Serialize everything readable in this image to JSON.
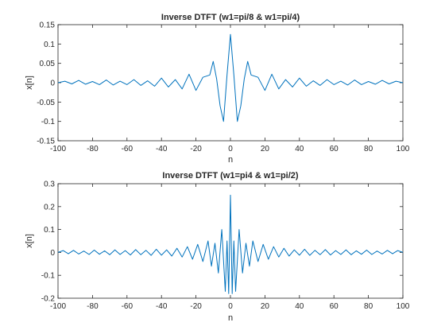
{
  "chart_data": [
    {
      "type": "line",
      "title": "Inverse DTFT (w1=pi/8 & w1=pi/4)",
      "xlabel": "n",
      "ylabel": "x[n]",
      "xlim": [
        -100,
        100
      ],
      "ylim": [
        -0.15,
        0.15
      ],
      "xticks": [
        -100,
        -80,
        -60,
        -40,
        -20,
        0,
        20,
        40,
        60,
        80,
        100
      ],
      "yticks": [
        -0.15,
        -0.1,
        -0.05,
        0,
        0.05,
        0.1,
        0.15
      ],
      "xtick_labels": [
        "-100",
        "-80",
        "-60",
        "-40",
        "-20",
        "0",
        "20",
        "40",
        "60",
        "80",
        "100"
      ],
      "ytick_labels": [
        "-0.15",
        "-0.1",
        "-0.05",
        "0",
        "0.05",
        "0.1",
        "0.15"
      ],
      "grid": false,
      "series_color": "#0072BD",
      "x": [
        -100,
        -96,
        -92,
        -88,
        -84,
        -80,
        -76,
        -72,
        -68,
        -64,
        -60,
        -56,
        -52,
        -48,
        -44,
        -40,
        -36,
        -32,
        -28,
        -24,
        -20,
        -16,
        -12,
        -10,
        -8,
        -6,
        -4,
        -2,
        0,
        2,
        4,
        6,
        8,
        10,
        12,
        16,
        20,
        24,
        28,
        32,
        36,
        40,
        44,
        48,
        52,
        56,
        60,
        64,
        68,
        72,
        76,
        80,
        84,
        88,
        92,
        96,
        100
      ],
      "y": [
        0,
        0.004,
        -0.003,
        0.006,
        -0.004,
        0.003,
        -0.005,
        0.007,
        -0.006,
        0.004,
        -0.005,
        0.008,
        -0.007,
        0.005,
        -0.009,
        0.012,
        -0.011,
        0.008,
        -0.016,
        0.022,
        -0.02,
        0.014,
        0.02,
        0.055,
        0.01,
        -0.06,
        -0.1,
        0.02,
        0.125,
        0.02,
        -0.1,
        -0.06,
        0.01,
        0.055,
        0.02,
        0.014,
        -0.02,
        0.022,
        -0.016,
        0.008,
        -0.011,
        0.012,
        -0.009,
        0.005,
        -0.007,
        0.008,
        -0.005,
        0.004,
        -0.006,
        0.007,
        -0.005,
        0.003,
        -0.004,
        0.006,
        -0.003,
        0.004,
        0
      ]
    },
    {
      "type": "line",
      "title": "Inverse DTFT (w1=pi4 & w1=pi/2)",
      "xlabel": "n",
      "ylabel": "x[n]",
      "xlim": [
        -100,
        100
      ],
      "ylim": [
        -0.2,
        0.3
      ],
      "xticks": [
        -100,
        -80,
        -60,
        -40,
        -20,
        0,
        20,
        40,
        60,
        80,
        100
      ],
      "yticks": [
        -0.2,
        -0.1,
        0,
        0.1,
        0.2,
        0.3
      ],
      "xtick_labels": [
        "-100",
        "-80",
        "-60",
        "-40",
        "-20",
        "0",
        "20",
        "40",
        "60",
        "80",
        "100"
      ],
      "ytick_labels": [
        "-0.2",
        "-0.1",
        "0",
        "0.1",
        "0.2",
        "0.3"
      ],
      "grid": false,
      "series_color": "#0072BD",
      "x": [
        -100,
        -97,
        -94,
        -91,
        -88,
        -85,
        -82,
        -79,
        -76,
        -73,
        -70,
        -67,
        -64,
        -61,
        -58,
        -55,
        -52,
        -49,
        -46,
        -43,
        -40,
        -37,
        -34,
        -31,
        -28,
        -25,
        -22,
        -19,
        -16,
        -13,
        -11,
        -9,
        -7,
        -5,
        -3,
        -2,
        -1,
        0,
        1,
        2,
        3,
        5,
        7,
        9,
        11,
        13,
        16,
        19,
        22,
        25,
        28,
        31,
        34,
        37,
        40,
        43,
        46,
        49,
        52,
        55,
        58,
        61,
        64,
        67,
        70,
        73,
        76,
        79,
        82,
        85,
        88,
        91,
        94,
        97,
        100
      ],
      "y": [
        0,
        0.008,
        -0.006,
        0.009,
        -0.007,
        0.006,
        -0.009,
        0.01,
        -0.008,
        0.007,
        -0.01,
        0.011,
        -0.009,
        0.008,
        -0.011,
        0.012,
        -0.01,
        0.009,
        -0.013,
        0.014,
        -0.012,
        0.011,
        -0.016,
        0.018,
        -0.02,
        0.025,
        -0.03,
        0.035,
        -0.04,
        0.05,
        -0.06,
        0.04,
        -0.09,
        0.1,
        -0.17,
        0.05,
        -0.18,
        0.25,
        -0.18,
        0.05,
        -0.17,
        0.1,
        -0.09,
        0.04,
        -0.06,
        0.05,
        -0.04,
        0.035,
        -0.03,
        0.025,
        -0.02,
        0.018,
        -0.016,
        0.011,
        -0.012,
        0.014,
        -0.013,
        0.009,
        -0.01,
        0.012,
        -0.011,
        0.008,
        -0.009,
        0.011,
        -0.01,
        0.007,
        -0.008,
        0.01,
        -0.009,
        0.006,
        -0.007,
        0.009,
        -0.006,
        0.008,
        0
      ]
    }
  ]
}
